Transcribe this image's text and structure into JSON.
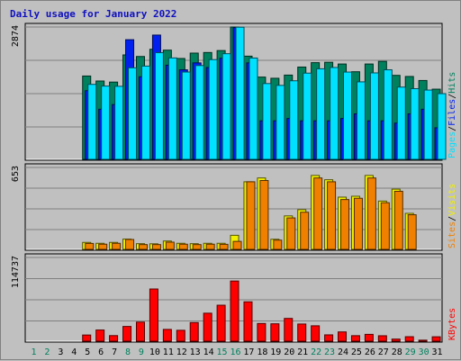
{
  "chart_data": {
    "type": "bar",
    "title": "Daily usage for January 2022",
    "days": [
      "1",
      "2",
      "3",
      "4",
      "5",
      "6",
      "7",
      "8",
      "9",
      "10",
      "11",
      "12",
      "13",
      "14",
      "15",
      "16",
      "17",
      "18",
      "19",
      "20",
      "21",
      "22",
      "23",
      "24",
      "25",
      "26",
      "27",
      "28",
      "29",
      "30",
      "31"
    ],
    "weekend_days": [
      1,
      2,
      8,
      9,
      15,
      16,
      22,
      23,
      29,
      30
    ],
    "colors": {
      "hits": "#00805c",
      "files": "#0020f0",
      "pages": "#00e0ff",
      "visits": "#f0f000",
      "sites": "#f08000",
      "kbytes": "#ff0000",
      "title": "#1010c0",
      "weekend_label": "#00805c",
      "weekday_label": "#000000"
    },
    "panels": [
      {
        "ymax_label": "2874",
        "ymax": 2874,
        "legend": [
          {
            "text": "Pages",
            "color": "#00e0ff"
          },
          {
            "text": "/",
            "color": "#000000"
          },
          {
            "text": "Files",
            "color": "#0020f0"
          },
          {
            "text": "/",
            "color": "#000000"
          },
          {
            "text": "Hits",
            "color": "#00805c"
          }
        ],
        "series": [
          {
            "name": "Hits",
            "color": "#00805c",
            "values": [
              0,
              0,
              0,
              0,
              1817,
              1709,
              1686,
              2272,
              2238,
              2394,
              2375,
              2195,
              2311,
              2324,
              2366,
              2874,
              2245,
              1794,
              1768,
              1837,
              2010,
              2105,
              2113,
              2076,
              1909,
              2076,
              2133,
              1831,
              1807,
              1720,
              1533
            ]
          },
          {
            "name": "Files",
            "color": "#0020f0",
            "values": [
              0,
              0,
              0,
              0,
              1500,
              1100,
              1200,
              2600,
              1800,
              2700,
              2050,
              1950,
              2100,
              2000,
              2200,
              2860,
              2100,
              850,
              850,
              900,
              850,
              850,
              850,
              900,
              1000,
              850,
              850,
              800,
              1000,
              1100,
              700
            ]
          },
          {
            "name": "Pages",
            "color": "#00e0ff",
            "values": [
              0,
              0,
              0,
              0,
              1637,
              1600,
              1595,
              1994,
              2031,
              2320,
              2207,
              1903,
              2043,
              2171,
              2298,
              2870,
              2205,
              1654,
              1615,
              1714,
              1879,
              1973,
              2001,
              1902,
              1691,
              1884,
              1951,
              1578,
              1544,
              1514,
              1437
            ]
          }
        ]
      },
      {
        "ymax_label": "653",
        "ymax": 653,
        "legend": [
          {
            "text": "Sites",
            "color": "#f08000"
          },
          {
            "text": "/",
            "color": "#000000"
          },
          {
            "text": "Visits",
            "color": "#f0f000"
          }
        ],
        "series": [
          {
            "name": "Visits",
            "color": "#f0f000",
            "values": [
              0,
              0,
              0,
              0,
              62,
              55,
              62,
              88,
              52,
              51,
              73,
              55,
              52,
              55,
              55,
              118,
              540,
              570,
              87,
              271,
              320,
              590,
              556,
              419,
              426,
              590,
              388,
              482,
              291,
              0,
              0
            ]
          },
          {
            "name": "Sites",
            "color": "#f08000",
            "values": [
              0,
              0,
              0,
              0,
              54,
              48,
              55,
              85,
              45,
              45,
              64,
              48,
              45,
              48,
              47,
              70,
              540,
              550,
              80,
              255,
              300,
              570,
              540,
              400,
              410,
              570,
              375,
              465,
              280,
              0,
              0
            ]
          }
        ]
      },
      {
        "ymax_label": "114737",
        "ymax": 114737,
        "legend": [
          {
            "text": "KBytes",
            "color": "#ff0000"
          }
        ],
        "series": [
          {
            "name": "KBytes",
            "color": "#ff0000",
            "values": [
              0,
              0,
              0,
              0,
              9600,
              16400,
              8800,
              21200,
              27100,
              72000,
              17200,
              16000,
              26500,
              39200,
              50000,
              82800,
              54600,
              25200,
              24800,
              32100,
              24500,
              22100,
              9800,
              13800,
              8700,
              10500,
              8600,
              4100,
              7300,
              2600,
              7200
            ]
          }
        ]
      }
    ]
  }
}
